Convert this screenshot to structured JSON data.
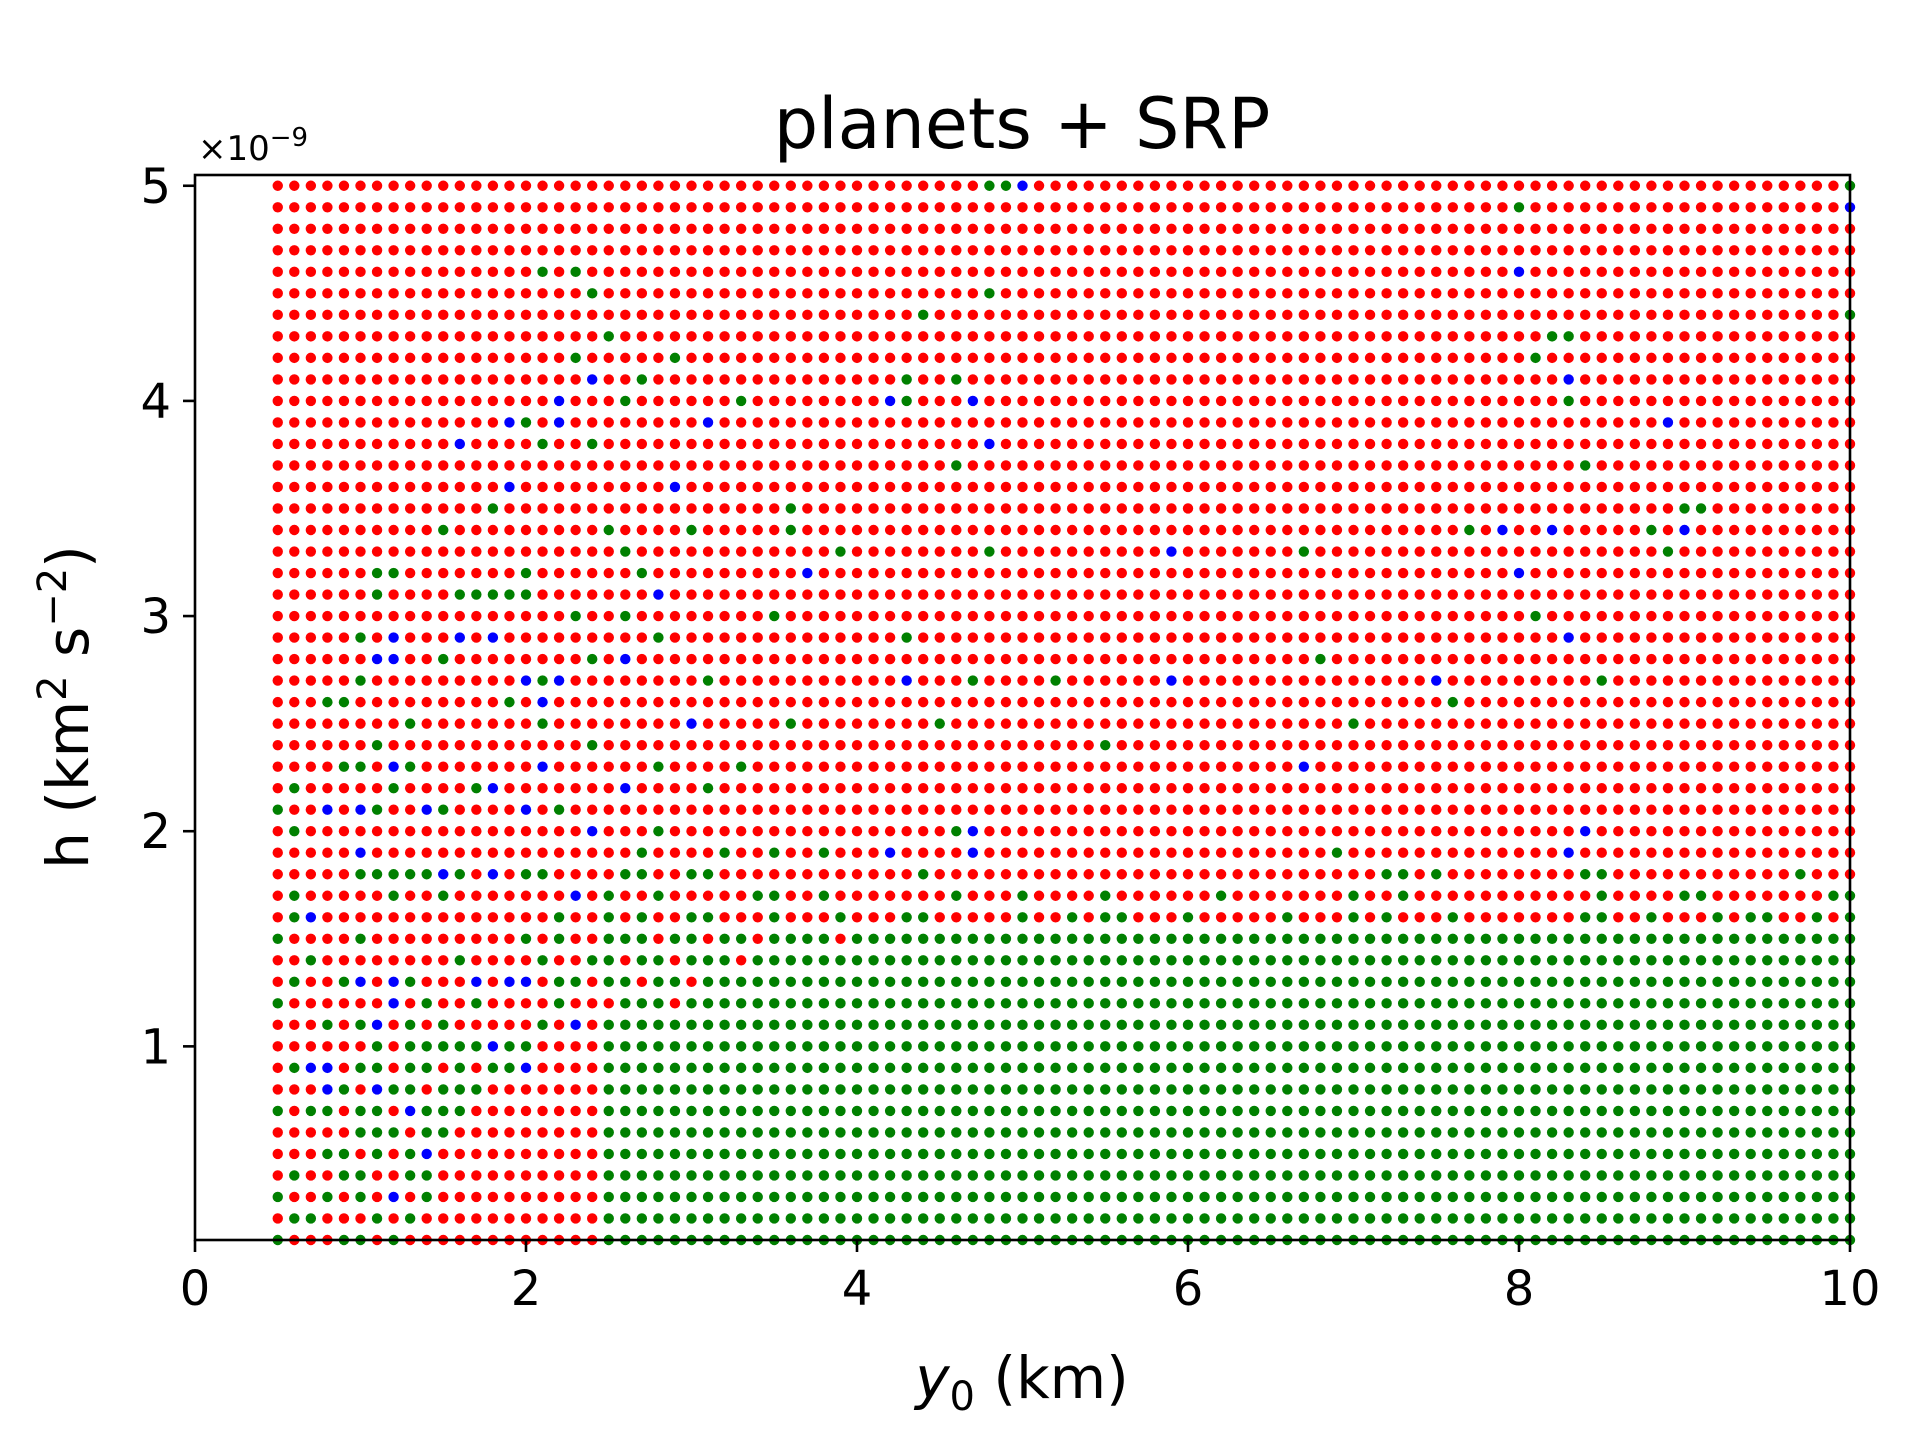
{
  "chart_data": {
    "type": "scatter",
    "title": "planets + SRP",
    "xlabel_var": "y",
    "xlabel_sub": "0",
    "xlabel_unit": " (km)",
    "ylabel_main": "h (km",
    "ylabel_sup1": "2",
    "ylabel_mid": " s",
    "ylabel_sup2": "−2",
    "ylabel_end": ")",
    "y_offset_base": "×10",
    "y_offset_exp": "−9",
    "xlim": [
      0,
      10
    ],
    "ylim": [
      0.1,
      5.05
    ],
    "y_unit_scale": "1e-9",
    "xticks": [
      "0",
      "2",
      "4",
      "6",
      "8",
      "10"
    ],
    "yticks": [
      "1",
      "2",
      "3",
      "4",
      "5"
    ],
    "grid": false,
    "grid_points": {
      "x_start": 0.5,
      "x_step": 0.1,
      "x_count": 96,
      "y_start": 0.1,
      "y_step": 0.1,
      "y_count": 50
    },
    "series": [
      {
        "color": "#ff0000"
      },
      {
        "color": "#008000"
      },
      {
        "color": "#0000ff"
      }
    ],
    "blue_points": [
      [
        5.0,
        5.0
      ],
      [
        10.0,
        4.9
      ],
      [
        8.0,
        4.6
      ],
      [
        2.4,
        4.1
      ],
      [
        8.3,
        4.1
      ],
      [
        2.2,
        4.0
      ],
      [
        4.2,
        4.0
      ],
      [
        4.7,
        4.0
      ],
      [
        1.9,
        3.9
      ],
      [
        2.2,
        3.9
      ],
      [
        3.1,
        3.9
      ],
      [
        8.9,
        3.9
      ],
      [
        1.6,
        3.8
      ],
      [
        4.8,
        3.8
      ],
      [
        1.9,
        3.6
      ],
      [
        2.9,
        3.6
      ],
      [
        7.9,
        3.4
      ],
      [
        8.2,
        3.4
      ],
      [
        9.0,
        3.4
      ],
      [
        5.9,
        3.3
      ],
      [
        3.7,
        3.2
      ],
      [
        8.0,
        3.2
      ],
      [
        2.8,
        3.1
      ],
      [
        1.2,
        2.9
      ],
      [
        1.6,
        2.9
      ],
      [
        1.8,
        2.9
      ],
      [
        8.3,
        2.9
      ],
      [
        1.1,
        2.8
      ],
      [
        1.2,
        2.8
      ],
      [
        2.6,
        2.8
      ],
      [
        2.0,
        2.7
      ],
      [
        2.2,
        2.7
      ],
      [
        4.3,
        2.7
      ],
      [
        5.9,
        2.7
      ],
      [
        7.5,
        2.7
      ],
      [
        2.1,
        2.6
      ],
      [
        3.0,
        2.5
      ],
      [
        1.2,
        2.3
      ],
      [
        2.1,
        2.3
      ],
      [
        6.7,
        2.3
      ],
      [
        1.8,
        2.2
      ],
      [
        2.6,
        2.2
      ],
      [
        0.8,
        2.1
      ],
      [
        1.0,
        2.1
      ],
      [
        1.4,
        2.1
      ],
      [
        2.0,
        2.1
      ],
      [
        2.4,
        2.0
      ],
      [
        4.7,
        2.0
      ],
      [
        8.4,
        2.0
      ],
      [
        1.0,
        1.9
      ],
      [
        4.2,
        1.9
      ],
      [
        4.7,
        1.9
      ],
      [
        8.3,
        1.9
      ],
      [
        1.5,
        1.8
      ],
      [
        1.8,
        1.8
      ],
      [
        2.3,
        1.7
      ],
      [
        0.7,
        1.6
      ],
      [
        1.0,
        1.3
      ],
      [
        1.2,
        1.3
      ],
      [
        1.7,
        1.3
      ],
      [
        1.9,
        1.3
      ],
      [
        2.0,
        1.3
      ],
      [
        1.2,
        1.2
      ],
      [
        1.1,
        1.1
      ],
      [
        2.3,
        1.1
      ],
      [
        1.8,
        1.0
      ],
      [
        0.7,
        0.9
      ],
      [
        0.8,
        0.9
      ],
      [
        2.0,
        0.9
      ],
      [
        0.8,
        0.8
      ],
      [
        1.1,
        0.8
      ],
      [
        1.3,
        0.7
      ],
      [
        1.4,
        0.5
      ],
      [
        1.2,
        0.3
      ]
    ],
    "green_points_upper": [
      [
        4.8,
        5.0
      ],
      [
        4.9,
        5.0
      ],
      [
        10.0,
        5.0
      ],
      [
        8.0,
        4.9
      ],
      [
        2.1,
        4.6
      ],
      [
        2.3,
        4.6
      ],
      [
        2.4,
        4.5
      ],
      [
        4.8,
        4.5
      ],
      [
        4.4,
        4.4
      ],
      [
        10.0,
        4.4
      ],
      [
        2.5,
        4.3
      ],
      [
        8.2,
        4.3
      ],
      [
        8.3,
        4.3
      ],
      [
        2.3,
        4.2
      ],
      [
        8.1,
        4.2
      ],
      [
        2.9,
        4.2
      ],
      [
        2.7,
        4.1
      ],
      [
        4.3,
        4.1
      ],
      [
        4.6,
        4.1
      ],
      [
        2.6,
        4.0
      ],
      [
        3.3,
        4.0
      ],
      [
        8.3,
        4.0
      ],
      [
        2.0,
        3.9
      ],
      [
        4.3,
        4.0
      ],
      [
        2.1,
        3.8
      ],
      [
        2.4,
        3.8
      ],
      [
        4.6,
        3.7
      ],
      [
        8.4,
        3.7
      ],
      [
        1.8,
        3.5
      ],
      [
        3.6,
        3.5
      ],
      [
        9.0,
        3.5
      ],
      [
        9.1,
        3.5
      ],
      [
        1.5,
        3.4
      ],
      [
        2.5,
        3.4
      ],
      [
        3.0,
        3.4
      ],
      [
        3.6,
        3.4
      ],
      [
        7.7,
        3.4
      ],
      [
        8.8,
        3.4
      ],
      [
        2.6,
        3.3
      ],
      [
        3.9,
        3.3
      ],
      [
        4.8,
        3.3
      ],
      [
        6.7,
        3.3
      ],
      [
        8.9,
        3.3
      ],
      [
        1.1,
        3.2
      ],
      [
        1.2,
        3.2
      ],
      [
        2.0,
        3.2
      ],
      [
        2.7,
        3.2
      ],
      [
        1.1,
        3.1
      ],
      [
        1.6,
        3.1
      ],
      [
        1.7,
        3.1
      ],
      [
        1.8,
        3.1
      ],
      [
        1.9,
        3.1
      ],
      [
        2.0,
        3.1
      ],
      [
        2.3,
        3.0
      ],
      [
        2.6,
        3.0
      ],
      [
        3.5,
        3.0
      ],
      [
        1.0,
        2.9
      ],
      [
        2.8,
        2.9
      ],
      [
        4.3,
        2.9
      ],
      [
        8.1,
        3.0
      ],
      [
        1.5,
        2.8
      ],
      [
        2.4,
        2.8
      ],
      [
        6.8,
        2.8
      ],
      [
        1.0,
        2.7
      ],
      [
        2.1,
        2.7
      ],
      [
        3.1,
        2.7
      ],
      [
        4.7,
        2.7
      ],
      [
        5.2,
        2.7
      ],
      [
        8.5,
        2.7
      ],
      [
        0.8,
        2.6
      ],
      [
        0.9,
        2.6
      ],
      [
        1.9,
        2.6
      ],
      [
        7.6,
        2.6
      ],
      [
        1.3,
        2.5
      ],
      [
        2.1,
        2.5
      ],
      [
        3.6,
        2.5
      ],
      [
        4.5,
        2.5
      ],
      [
        7.0,
        2.5
      ],
      [
        1.1,
        2.4
      ],
      [
        2.4,
        2.4
      ],
      [
        5.5,
        2.4
      ],
      [
        1.0,
        2.3
      ],
      [
        0.9,
        2.3
      ],
      [
        1.3,
        2.3
      ],
      [
        2.8,
        2.3
      ],
      [
        3.3,
        2.3
      ],
      [
        0.6,
        2.2
      ],
      [
        1.2,
        2.2
      ],
      [
        1.7,
        2.2
      ],
      [
        3.1,
        2.2
      ],
      [
        0.5,
        2.1
      ],
      [
        1.1,
        2.1
      ],
      [
        1.5,
        2.1
      ],
      [
        2.2,
        2.1
      ],
      [
        0.6,
        2.0
      ],
      [
        2.8,
        2.0
      ],
      [
        4.6,
        2.0
      ],
      [
        2.7,
        1.9
      ],
      [
        3.2,
        1.9
      ],
      [
        3.5,
        1.9
      ],
      [
        3.8,
        1.9
      ],
      [
        6.9,
        1.9
      ],
      [
        8.3,
        1.9
      ],
      [
        1.0,
        1.8
      ],
      [
        1.1,
        1.8
      ],
      [
        1.2,
        1.8
      ],
      [
        1.3,
        1.8
      ],
      [
        1.4,
        1.8
      ],
      [
        1.6,
        1.8
      ],
      [
        2.0,
        1.8
      ],
      [
        2.1,
        1.8
      ],
      [
        2.6,
        1.8
      ],
      [
        2.7,
        1.8
      ],
      [
        3.0,
        1.8
      ],
      [
        3.1,
        1.8
      ],
      [
        4.4,
        1.8
      ],
      [
        7.2,
        1.8
      ],
      [
        7.3,
        1.8
      ],
      [
        7.5,
        1.8
      ],
      [
        8.4,
        1.8
      ],
      [
        8.5,
        1.8
      ],
      [
        9.7,
        1.8
      ],
      [
        0.6,
        1.7
      ],
      [
        1.2,
        1.7
      ],
      [
        1.5,
        1.7
      ],
      [
        2.5,
        1.7
      ],
      [
        2.8,
        1.7
      ],
      [
        3.4,
        1.7
      ],
      [
        3.5,
        1.7
      ],
      [
        3.8,
        1.7
      ],
      [
        4.6,
        1.7
      ],
      [
        5.0,
        1.7
      ],
      [
        5.5,
        1.7
      ],
      [
        6.2,
        1.7
      ],
      [
        7.0,
        1.7
      ],
      [
        7.3,
        1.7
      ],
      [
        8.5,
        1.7
      ],
      [
        9.0,
        1.7
      ],
      [
        9.1,
        1.7
      ],
      [
        9.9,
        1.7
      ],
      [
        10.0,
        1.7
      ],
      [
        0.6,
        1.6
      ],
      [
        2.2,
        1.6
      ],
      [
        2.5,
        1.6
      ],
      [
        2.7,
        1.6
      ],
      [
        3.0,
        1.6
      ],
      [
        3.1,
        1.6
      ],
      [
        3.5,
        1.6
      ],
      [
        3.9,
        1.6
      ],
      [
        4.3,
        1.6
      ],
      [
        4.4,
        1.6
      ],
      [
        5.0,
        1.6
      ],
      [
        5.3,
        1.6
      ],
      [
        5.5,
        1.6
      ],
      [
        5.6,
        1.6
      ],
      [
        6.0,
        1.6
      ],
      [
        6.6,
        1.6
      ],
      [
        7.0,
        1.6
      ],
      [
        7.2,
        1.6
      ],
      [
        7.6,
        1.6
      ],
      [
        8.4,
        1.6
      ],
      [
        8.5,
        1.6
      ],
      [
        8.8,
        1.6
      ],
      [
        9.2,
        1.6
      ],
      [
        9.4,
        1.6
      ],
      [
        9.5,
        1.6
      ],
      [
        9.8,
        1.6
      ],
      [
        10.0,
        1.6
      ]
    ],
    "green_points_lower_extra": [
      [
        0.5,
        1.5
      ],
      [
        1.0,
        1.5
      ],
      [
        2.0,
        1.5
      ],
      [
        2.2,
        1.5
      ],
      [
        2.5,
        1.5
      ],
      [
        2.6,
        1.5
      ],
      [
        0.7,
        1.4
      ],
      [
        1.6,
        1.4
      ],
      [
        2.1,
        1.4
      ],
      [
        2.4,
        1.4
      ],
      [
        0.6,
        1.3
      ],
      [
        0.9,
        1.3
      ],
      [
        1.3,
        1.3
      ],
      [
        2.2,
        1.3
      ],
      [
        2.3,
        1.3
      ],
      [
        0.5,
        1.2
      ],
      [
        1.4,
        1.2
      ],
      [
        1.7,
        1.2
      ],
      [
        2.2,
        1.2
      ],
      [
        0.8,
        1.1
      ],
      [
        1.0,
        1.1
      ],
      [
        1.3,
        1.1
      ],
      [
        1.5,
        1.1
      ],
      [
        2.1,
        1.1
      ],
      [
        1.1,
        1.0
      ],
      [
        1.3,
        1.0
      ],
      [
        1.4,
        1.0
      ],
      [
        1.5,
        1.0
      ],
      [
        1.6,
        1.0
      ],
      [
        1.7,
        1.0
      ],
      [
        1.9,
        1.0
      ],
      [
        2.0,
        1.0
      ],
      [
        0.6,
        0.9
      ],
      [
        1.0,
        0.9
      ],
      [
        1.1,
        0.9
      ],
      [
        1.3,
        0.9
      ],
      [
        1.4,
        0.9
      ],
      [
        1.6,
        0.9
      ],
      [
        1.8,
        0.9
      ],
      [
        1.9,
        0.9
      ],
      [
        0.9,
        0.8
      ],
      [
        1.2,
        0.8
      ],
      [
        1.3,
        0.8
      ],
      [
        1.5,
        0.8
      ],
      [
        1.6,
        0.8
      ],
      [
        1.7,
        0.8
      ],
      [
        0.5,
        0.7
      ],
      [
        0.7,
        0.7
      ],
      [
        0.8,
        0.7
      ],
      [
        1.0,
        0.7
      ],
      [
        1.1,
        0.7
      ],
      [
        1.4,
        0.7
      ],
      [
        1.5,
        0.7
      ],
      [
        1.6,
        0.7
      ],
      [
        1.0,
        0.6
      ],
      [
        1.1,
        0.6
      ],
      [
        1.2,
        0.6
      ],
      [
        1.4,
        0.6
      ],
      [
        1.5,
        0.6
      ],
      [
        0.8,
        0.5
      ],
      [
        0.9,
        0.5
      ],
      [
        1.1,
        0.5
      ],
      [
        1.3,
        0.5
      ],
      [
        0.6,
        0.4
      ],
      [
        0.9,
        0.4
      ],
      [
        1.0,
        0.4
      ],
      [
        1.3,
        0.4
      ],
      [
        1.4,
        0.4
      ],
      [
        0.5,
        0.3
      ],
      [
        0.8,
        0.3
      ],
      [
        1.0,
        0.3
      ],
      [
        1.4,
        0.3
      ],
      [
        0.6,
        0.2
      ],
      [
        0.7,
        0.2
      ],
      [
        1.1,
        0.2
      ],
      [
        1.3,
        0.2
      ],
      [
        0.5,
        0.1
      ],
      [
        0.9,
        0.1
      ],
      [
        1.0,
        0.1
      ],
      [
        1.2,
        0.1
      ]
    ],
    "red_points_lower_extra": [
      [
        3.4,
        1.5
      ],
      [
        3.9,
        1.5
      ],
      [
        2.8,
        1.5
      ],
      [
        3.1,
        1.5
      ],
      [
        2.9,
        1.4
      ],
      [
        3.3,
        1.4
      ],
      [
        2.6,
        1.4
      ],
      [
        2.7,
        1.3
      ],
      [
        3.0,
        1.3
      ],
      [
        2.4,
        1.2
      ],
      [
        2.5,
        1.2
      ],
      [
        2.9,
        1.2
      ],
      [
        2.3,
        1.0
      ],
      [
        2.4,
        1.0
      ],
      [
        2.2,
        0.9
      ],
      [
        2.3,
        0.9
      ],
      [
        2.1,
        0.8
      ],
      [
        1.8,
        0.7
      ],
      [
        1.9,
        0.7
      ],
      [
        1.7,
        0.6
      ],
      [
        1.5,
        0.5
      ],
      [
        1.6,
        0.5
      ],
      [
        1.5,
        0.4
      ],
      [
        1.5,
        0.3
      ],
      [
        1.6,
        0.3
      ],
      [
        1.4,
        0.2
      ],
      [
        1.5,
        0.2
      ],
      [
        1.3,
        0.1
      ],
      [
        1.4,
        0.1
      ]
    ]
  }
}
